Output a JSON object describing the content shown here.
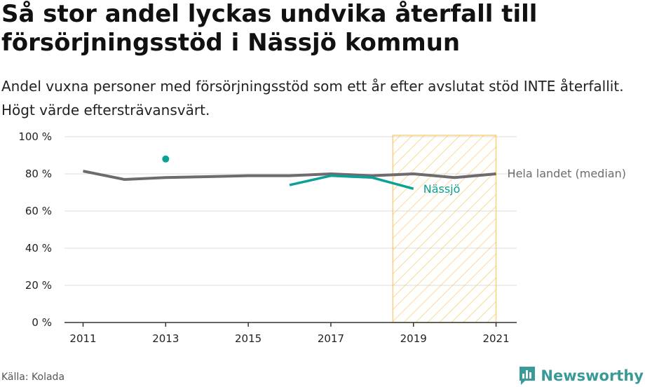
{
  "header": {
    "title": "Så stor andel lyckas undvika återfall till försörjningsstöd i Nässjö kommun",
    "subtitle": "Andel vuxna personer med försörjningsstöd som ett år efter avslutat stöd INTE återfallit. Högt värde eftersträvansvärt."
  },
  "footer": {
    "source": "Källa: Kolada",
    "brand": "Newsworthy",
    "brand_icon": "newsworthy-logo-icon"
  },
  "colors": {
    "median": "#6e6a70",
    "nassjo": "#0aa197",
    "highlight": "#f5c044",
    "grid": "#dcdcdc",
    "axis": "#333333"
  },
  "chart_data": {
    "type": "line",
    "x": [
      2011,
      2012,
      2013,
      2014,
      2015,
      2016,
      2017,
      2018,
      2019,
      2020,
      2021
    ],
    "series": [
      {
        "name": "Hela landet (median)",
        "values": [
          81.5,
          77,
          78,
          78.5,
          79,
          79,
          80,
          79,
          80,
          78,
          80
        ]
      },
      {
        "name": "Nässjö",
        "values": [
          null,
          null,
          88,
          null,
          null,
          74,
          79,
          78,
          72,
          null,
          null
        ]
      }
    ],
    "ylim": [
      0,
      100
    ],
    "yticks": [
      0,
      20,
      40,
      60,
      80,
      100
    ],
    "ytick_labels": [
      "0 %",
      "20 %",
      "40 %",
      "60 %",
      "80 %",
      "100 %"
    ],
    "xticks": [
      2011,
      2013,
      2015,
      2017,
      2019,
      2021
    ],
    "xtick_labels": [
      "2011",
      "2013",
      "2015",
      "2017",
      "2019",
      "2021"
    ],
    "highlight_range": [
      2018.5,
      2021
    ],
    "grid": true,
    "xlabel": "",
    "ylabel": ""
  }
}
